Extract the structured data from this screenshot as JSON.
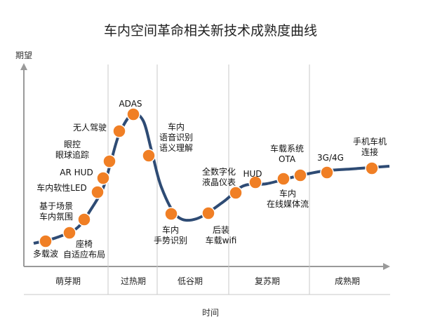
{
  "chart_data": {
    "type": "line",
    "title": "车内空间革命相关新技术成熟度曲线",
    "ylabel": "期望",
    "xlabel": "时间",
    "phases": [
      "萌芽期",
      "过热期",
      "低谷期",
      "复苏期",
      "成熟期"
    ],
    "grid": false,
    "series": [
      {
        "values": [
          {
            "label": "多载波",
            "phase": "萌芽期"
          },
          {
            "label": "座椅\n自适应布局",
            "phase": "萌芽期"
          },
          {
            "label": "基于场景\n车内氛围",
            "phase": "萌芽期"
          },
          {
            "label": "车内软性LED",
            "phase": "萌芽期"
          },
          {
            "label": "AR HUD",
            "phase": "萌芽期"
          },
          {
            "label": "眼控\n眼球追踪",
            "phase": "萌芽期"
          },
          {
            "label": "无人驾驶",
            "phase": "过热期"
          },
          {
            "label": "ADAS",
            "phase": "过热期"
          },
          {
            "label": "车内\n语音识别\n语义理解",
            "phase": "过热期"
          },
          {
            "label": "车内\n手势识别",
            "phase": "低谷期"
          },
          {
            "label": "后装\n车载wifi",
            "phase": "低谷期"
          },
          {
            "label": "全数字化\n液晶仪表",
            "phase": "复苏期"
          },
          {
            "label": "HUD",
            "phase": "复苏期"
          },
          {
            "label": "车内\n在线媒体流",
            "phase": "复苏期"
          },
          {
            "label": "车载系统\nOTA",
            "phase": "复苏期"
          },
          {
            "label": "3G/4G",
            "phase": "成熟期"
          },
          {
            "label": "手机车机\n连接",
            "phase": "成熟期"
          }
        ]
      }
    ],
    "colors": {
      "curve": "#2e4b74",
      "point": "#f07f25",
      "axis": "#9a9a9a",
      "divider": "#c8c8c8"
    }
  }
}
